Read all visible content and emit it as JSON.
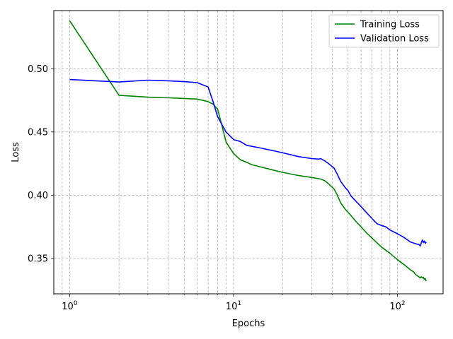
{
  "chart_data": {
    "type": "line",
    "xscale": "log",
    "xlim": [
      0.8,
      190
    ],
    "ylim": [
      0.322,
      0.546
    ],
    "xlabel": "Epochs",
    "ylabel": "Loss",
    "grid": true,
    "legend_position": "top-right",
    "x_ticks": [
      {
        "value": 1,
        "base": "10",
        "exp": "0"
      },
      {
        "value": 10,
        "base": "10",
        "exp": "1"
      },
      {
        "value": 100,
        "base": "10",
        "exp": "2"
      }
    ],
    "y_ticks": [
      {
        "value": 0.35,
        "label": "0.35"
      },
      {
        "value": 0.4,
        "label": "0.40"
      },
      {
        "value": 0.45,
        "label": "0.45"
      },
      {
        "value": 0.5,
        "label": "0.50"
      }
    ],
    "series": [
      {
        "name": "Training Loss",
        "color": "#008000",
        "points": [
          [
            1,
            0.538
          ],
          [
            2,
            0.479
          ],
          [
            3,
            0.4775
          ],
          [
            4,
            0.477
          ],
          [
            5,
            0.4765
          ],
          [
            6,
            0.476
          ],
          [
            7,
            0.474
          ],
          [
            7.5,
            0.472
          ],
          [
            8,
            0.468
          ],
          [
            8.5,
            0.455
          ],
          [
            9,
            0.442
          ],
          [
            10,
            0.433
          ],
          [
            11,
            0.428
          ],
          [
            12,
            0.426
          ],
          [
            13,
            0.424
          ],
          [
            15,
            0.422
          ],
          [
            20,
            0.418
          ],
          [
            25,
            0.4155
          ],
          [
            30,
            0.414
          ],
          [
            34,
            0.4128
          ],
          [
            36,
            0.4115
          ],
          [
            38,
            0.409
          ],
          [
            41,
            0.405
          ],
          [
            43,
            0.4
          ],
          [
            45,
            0.394
          ],
          [
            48,
            0.389
          ],
          [
            52,
            0.384
          ],
          [
            56,
            0.379
          ],
          [
            60,
            0.375
          ],
          [
            65,
            0.37
          ],
          [
            70,
            0.366
          ],
          [
            80,
            0.359
          ],
          [
            90,
            0.354
          ],
          [
            100,
            0.349
          ],
          [
            110,
            0.345
          ],
          [
            120,
            0.341
          ],
          [
            125,
            0.3395
          ],
          [
            130,
            0.337
          ],
          [
            135,
            0.3355
          ],
          [
            138,
            0.3345
          ],
          [
            140,
            0.3355
          ],
          [
            142,
            0.3345
          ],
          [
            144,
            0.335
          ],
          [
            146,
            0.3335
          ],
          [
            148,
            0.334
          ],
          [
            150,
            0.332
          ]
        ]
      },
      {
        "name": "Validation Loss",
        "color": "#0000ff",
        "points": [
          [
            1,
            0.4915
          ],
          [
            2,
            0.4895
          ],
          [
            3,
            0.491
          ],
          [
            4,
            0.4905
          ],
          [
            5,
            0.4898
          ],
          [
            6,
            0.489
          ],
          [
            7,
            0.4855
          ],
          [
            7.5,
            0.474
          ],
          [
            8,
            0.462
          ],
          [
            9,
            0.45
          ],
          [
            10,
            0.444
          ],
          [
            11,
            0.4425
          ],
          [
            12,
            0.4395
          ],
          [
            15,
            0.437
          ],
          [
            20,
            0.4335
          ],
          [
            25,
            0.4305
          ],
          [
            30,
            0.429
          ],
          [
            33,
            0.4285
          ],
          [
            34,
            0.4289
          ],
          [
            36,
            0.4272
          ],
          [
            38,
            0.425
          ],
          [
            41,
            0.4215
          ],
          [
            43,
            0.4165
          ],
          [
            45,
            0.411
          ],
          [
            48,
            0.406
          ],
          [
            50,
            0.4035
          ],
          [
            52,
            0.3995
          ],
          [
            56,
            0.395
          ],
          [
            60,
            0.391
          ],
          [
            65,
            0.386
          ],
          [
            70,
            0.3815
          ],
          [
            75,
            0.3775
          ],
          [
            80,
            0.376
          ],
          [
            85,
            0.375
          ],
          [
            90,
            0.3725
          ],
          [
            100,
            0.3695
          ],
          [
            110,
            0.3665
          ],
          [
            120,
            0.363
          ],
          [
            130,
            0.3615
          ],
          [
            135,
            0.361
          ],
          [
            138,
            0.3598
          ],
          [
            140,
            0.3625
          ],
          [
            142,
            0.3645
          ],
          [
            144,
            0.3625
          ],
          [
            146,
            0.3638
          ],
          [
            148,
            0.362
          ],
          [
            150,
            0.363
          ]
        ]
      }
    ]
  }
}
